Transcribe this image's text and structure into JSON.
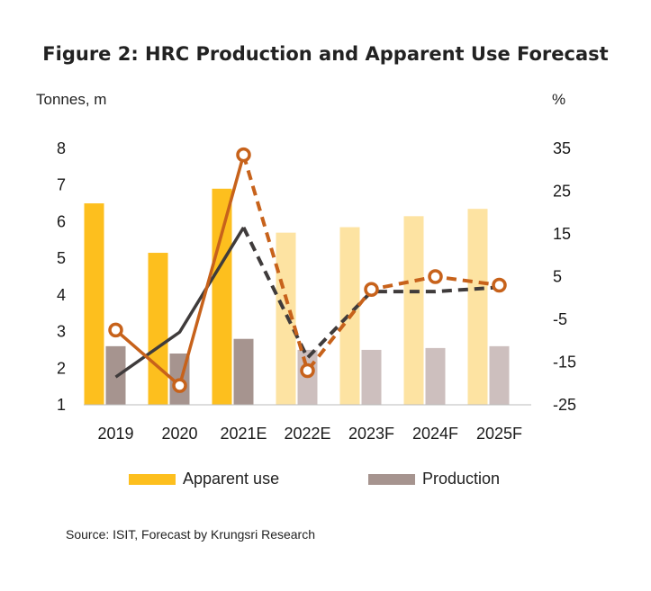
{
  "title": "Figure 2: HRC Production and Apparent Use Forecast",
  "left_axis_unit": "Tonnes, m",
  "right_axis_unit": "%",
  "source": "Source: ISIT, Forecast by Krungsri Research",
  "legend": {
    "apparent_use": "Apparent use",
    "production": "Production"
  },
  "colors": {
    "apparent_actual": "#FDBF1E",
    "apparent_forecast": "#FDE3A2",
    "production_actual": "#A6948F",
    "production_forecast": "#CDBFBE",
    "apparent_growth_line": "#C7621B",
    "production_growth_line": "#3F3B3B"
  },
  "chart_data": {
    "type": "bar",
    "categories": [
      "2019",
      "2020",
      "2021E",
      "2022E",
      "2023F",
      "2024F",
      "2025F"
    ],
    "forecast_from_index": 3,
    "left_axis": {
      "ylim": [
        1,
        8
      ],
      "ticks": [
        1,
        2,
        3,
        4,
        5,
        6,
        7,
        8
      ]
    },
    "right_axis": {
      "ylim": [
        -25,
        35
      ],
      "ticks": [
        35,
        25,
        15,
        5,
        -5,
        -15,
        -25
      ]
    },
    "series": [
      {
        "name": "Apparent use",
        "type": "bar",
        "axis": "left",
        "values": [
          6.5,
          5.15,
          6.9,
          5.7,
          5.85,
          6.15,
          6.35
        ]
      },
      {
        "name": "Production",
        "type": "bar",
        "axis": "left",
        "values": [
          2.6,
          2.4,
          2.8,
          2.5,
          2.5,
          2.55,
          2.6
        ]
      },
      {
        "type": "line",
        "axis": "right",
        "markers": true,
        "values": [
          -7.5,
          -20.5,
          33.5,
          -17,
          2,
          5,
          3
        ]
      },
      {
        "type": "line",
        "axis": "right",
        "markers": false,
        "values": [
          -18.5,
          -8,
          16.5,
          -14,
          1.5,
          1.5,
          2.5
        ]
      }
    ]
  }
}
